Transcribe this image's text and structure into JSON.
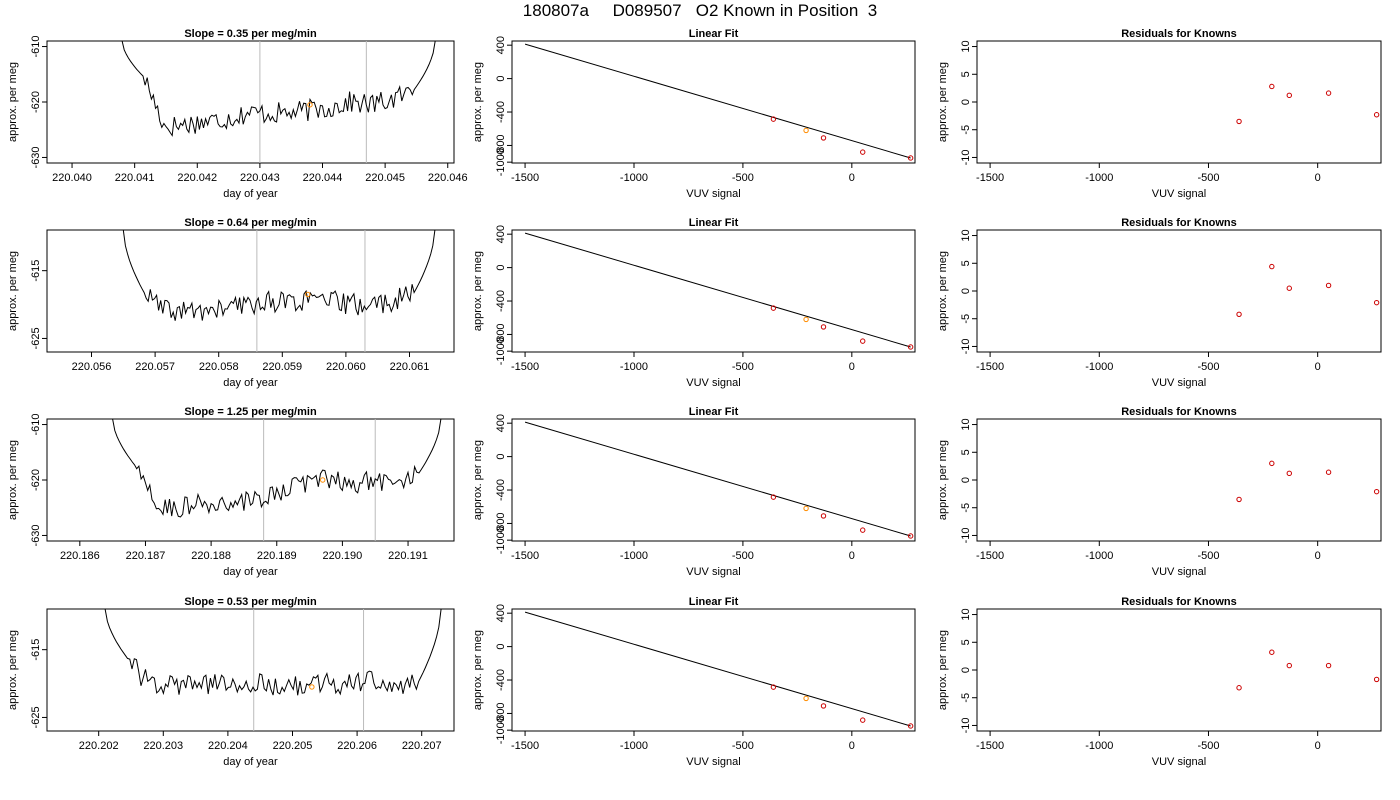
{
  "figure_title": "180807a     D089507   O2 Known in Position  3",
  "colors": {
    "trace": "#000000",
    "known_point": "#cc0000",
    "highlight_point": "#ff8c00",
    "vline": "#bbbbbb",
    "frame": "#000000"
  },
  "chart_data": [
    {
      "type": "line",
      "row": 1,
      "panel": "drift",
      "title": "Slope =  0.35  per meg/min",
      "xlabel": "day of year",
      "ylabel": "approx. per meg",
      "xlim": [
        220.0396,
        220.0461
      ],
      "ylim": [
        -631,
        -609
      ],
      "x_ticks": [
        "220.040",
        "220.041",
        "220.042",
        "220.043",
        "220.044",
        "220.045",
        "220.046"
      ],
      "y_ticks": [
        "-610",
        "-620",
        "-630"
      ],
      "vlines": [
        220.043,
        220.0447
      ],
      "trace_x_start": 220.0408,
      "trace_x_end": 220.0458,
      "trace_y_start": -609,
      "trace_y_end": -609,
      "trace_core": [
        -615.5,
        -624.5,
        -624,
        -623.5,
        -623,
        -622,
        -622,
        -622,
        -621.5,
        -621,
        -620,
        -620.5,
        -619.5,
        -618
      ],
      "highlight_point": {
        "x": 220.0438,
        "y": -620.5
      }
    },
    {
      "type": "scatter",
      "row": 1,
      "panel": "fit",
      "title": "Linear Fit",
      "xlabel": "VUV signal",
      "ylabel": "approx. per meg",
      "xlim": [
        -1560,
        290
      ],
      "ylim": [
        -1010,
        450
      ],
      "x_ticks": [
        "-1500",
        "-1000",
        "-500",
        "0"
      ],
      "y_ticks": [
        "-1000",
        "-800",
        "-400",
        "0",
        "400"
      ],
      "line": {
        "x": [
          -1500,
          270
        ],
        "y": [
          413,
          -950
        ]
      },
      "points": {
        "x": [
          -360,
          -210,
          -130,
          50,
          270
        ],
        "y": [
          -485,
          -620,
          -710,
          -880,
          -950
        ]
      },
      "highlight_index": 1
    },
    {
      "type": "scatter",
      "row": 1,
      "panel": "residuals",
      "title": "Residuals for Knowns",
      "xlabel": "VUV signal",
      "ylabel": "approx. per meg",
      "xlim": [
        -1560,
        290
      ],
      "ylim": [
        -11,
        11
      ],
      "x_ticks": [
        "-1500",
        "-1000",
        "-500",
        "0"
      ],
      "y_ticks": [
        "-10",
        "-5",
        "0",
        "5",
        "10"
      ],
      "points": {
        "x": [
          -360,
          -210,
          -130,
          50,
          270
        ],
        "y": [
          -3.5,
          2.8,
          1.2,
          1.6,
          -2.3
        ]
      }
    },
    {
      "type": "line",
      "row": 2,
      "panel": "drift",
      "title": "Slope =  0.64  per meg/min",
      "xlabel": "day of year",
      "ylabel": "approx. per meg",
      "xlim": [
        220.0553,
        220.0617
      ],
      "ylim": [
        -627,
        -609
      ],
      "x_ticks": [
        "220.056",
        "220.057",
        "220.058",
        "220.059",
        "220.060",
        "220.061"
      ],
      "y_ticks": [
        "-615",
        "-625"
      ],
      "vlines": [
        220.0586,
        220.0603
      ],
      "trace_x_start": 220.0565,
      "trace_x_end": 220.0614,
      "trace_y_start": -609,
      "trace_y_end": -609,
      "trace_core": [
        -618.5,
        -621,
        -621,
        -621,
        -620.5,
        -620,
        -619.5,
        -619.5,
        -619.5,
        -619.5,
        -620,
        -620,
        -619.5,
        -618.5
      ],
      "highlight_point": {
        "x": 220.0594,
        "y": -618.5
      }
    },
    {
      "type": "scatter",
      "row": 2,
      "panel": "fit",
      "title": "Linear Fit",
      "xlabel": "VUV signal",
      "ylabel": "approx. per meg",
      "xlim": [
        -1560,
        290
      ],
      "ylim": [
        -1010,
        450
      ],
      "x_ticks": [
        "-1500",
        "-1000",
        "-500",
        "0"
      ],
      "y_ticks": [
        "-1000",
        "-800",
        "-400",
        "0",
        "400"
      ],
      "line": {
        "x": [
          -1500,
          270
        ],
        "y": [
          413,
          -950
        ]
      },
      "points": {
        "x": [
          -360,
          -210,
          -130,
          50,
          270
        ],
        "y": [
          -485,
          -620,
          -710,
          -880,
          -950
        ]
      },
      "highlight_index": 1
    },
    {
      "type": "scatter",
      "row": 2,
      "panel": "residuals",
      "title": "Residuals for Knowns",
      "xlabel": "VUV signal",
      "ylabel": "approx. per meg",
      "xlim": [
        -1560,
        290
      ],
      "ylim": [
        -11,
        11
      ],
      "x_ticks": [
        "-1500",
        "-1000",
        "-500",
        "0"
      ],
      "y_ticks": [
        "-10",
        "-5",
        "0",
        "5",
        "10"
      ],
      "points": {
        "x": [
          -360,
          -210,
          -130,
          50,
          270
        ],
        "y": [
          -4.2,
          4.4,
          0.5,
          1.0,
          -2.1
        ]
      }
    },
    {
      "type": "line",
      "row": 3,
      "panel": "drift",
      "title": "Slope =  1.25  per meg/min",
      "xlabel": "day of year",
      "ylabel": "approx. per meg",
      "xlim": [
        220.1855,
        220.1917
      ],
      "ylim": [
        -631,
        -609
      ],
      "x_ticks": [
        "220.186",
        "220.187",
        "220.188",
        "220.189",
        "220.190",
        "220.191"
      ],
      "y_ticks": [
        "-610",
        "-620",
        "-630"
      ],
      "vlines": [
        220.1888,
        220.1905
      ],
      "trace_x_start": 220.1865,
      "trace_x_end": 220.1915,
      "trace_y_start": -609,
      "trace_y_end": -609,
      "trace_core": [
        -617.5,
        -625,
        -625,
        -624.5,
        -624.5,
        -624,
        -623.5,
        -621,
        -620.5,
        -620,
        -620.5,
        -620,
        -620,
        -619
      ],
      "highlight_point": {
        "x": 220.1897,
        "y": -620
      }
    },
    {
      "type": "scatter",
      "row": 3,
      "panel": "fit",
      "title": "Linear Fit",
      "xlabel": "VUV signal",
      "ylabel": "approx. per meg",
      "xlim": [
        -1560,
        290
      ],
      "ylim": [
        -1010,
        450
      ],
      "x_ticks": [
        "-1500",
        "-1000",
        "-500",
        "0"
      ],
      "y_ticks": [
        "-1000",
        "-800",
        "-400",
        "0",
        "400"
      ],
      "line": {
        "x": [
          -1500,
          270
        ],
        "y": [
          413,
          -950
        ]
      },
      "points": {
        "x": [
          -360,
          -210,
          -130,
          50,
          270
        ],
        "y": [
          -485,
          -620,
          -710,
          -880,
          -950
        ]
      },
      "highlight_index": 1
    },
    {
      "type": "scatter",
      "row": 3,
      "panel": "residuals",
      "title": "Residuals for Knowns",
      "xlabel": "VUV signal",
      "ylabel": "approx. per meg",
      "xlim": [
        -1560,
        290
      ],
      "ylim": [
        -11,
        11
      ],
      "x_ticks": [
        "-1500",
        "-1000",
        "-500",
        "0"
      ],
      "y_ticks": [
        "-10",
        "-5",
        "0",
        "5",
        "10"
      ],
      "points": {
        "x": [
          -360,
          -210,
          -130,
          50,
          270
        ],
        "y": [
          -3.5,
          3.0,
          1.2,
          1.4,
          -2.1
        ]
      }
    },
    {
      "type": "line",
      "row": 4,
      "panel": "drift",
      "title": "Slope =  0.53  per meg/min",
      "xlabel": "day of year",
      "ylabel": "approx. per meg",
      "xlim": [
        220.2012,
        220.2075
      ],
      "ylim": [
        -627,
        -609
      ],
      "x_ticks": [
        "220.202",
        "220.203",
        "220.204",
        "220.205",
        "220.206",
        "220.207"
      ],
      "y_ticks": [
        "-615",
        "-625"
      ],
      "vlines": [
        220.2044,
        220.2061
      ],
      "trace_x_start": 220.2021,
      "trace_x_end": 220.2073,
      "trace_y_start": -609,
      "trace_y_end": -609,
      "trace_core": [
        -616.5,
        -620.5,
        -620,
        -620.5,
        -620,
        -620,
        -620,
        -620.5,
        -620.5,
        -620,
        -620,
        -619.5,
        -620.5,
        -620
      ],
      "highlight_point": {
        "x": 220.2053,
        "y": -620.5
      }
    },
    {
      "type": "scatter",
      "row": 4,
      "panel": "fit",
      "title": "Linear Fit",
      "xlabel": "VUV signal",
      "ylabel": "approx. per meg",
      "xlim": [
        -1560,
        290
      ],
      "ylim": [
        -1010,
        450
      ],
      "x_ticks": [
        "-1500",
        "-1000",
        "-500",
        "0"
      ],
      "y_ticks": [
        "-1000",
        "-800",
        "-400",
        "0",
        "400"
      ],
      "line": {
        "x": [
          -1500,
          270
        ],
        "y": [
          413,
          -950
        ]
      },
      "points": {
        "x": [
          -360,
          -210,
          -130,
          50,
          270
        ],
        "y": [
          -485,
          -620,
          -710,
          -880,
          -950
        ]
      },
      "highlight_index": 1
    },
    {
      "type": "scatter",
      "row": 4,
      "panel": "residuals",
      "title": "Residuals for Knowns",
      "xlabel": "VUV signal",
      "ylabel": "approx. per meg",
      "xlim": [
        -1560,
        290
      ],
      "ylim": [
        -11,
        11
      ],
      "x_ticks": [
        "-1500",
        "-1000",
        "-500",
        "0"
      ],
      "y_ticks": [
        "-10",
        "-5",
        "0",
        "5",
        "10"
      ],
      "points": {
        "x": [
          -360,
          -210,
          -130,
          50,
          270
        ],
        "y": [
          -3.2,
          3.2,
          0.8,
          0.8,
          -1.7
        ]
      }
    }
  ]
}
